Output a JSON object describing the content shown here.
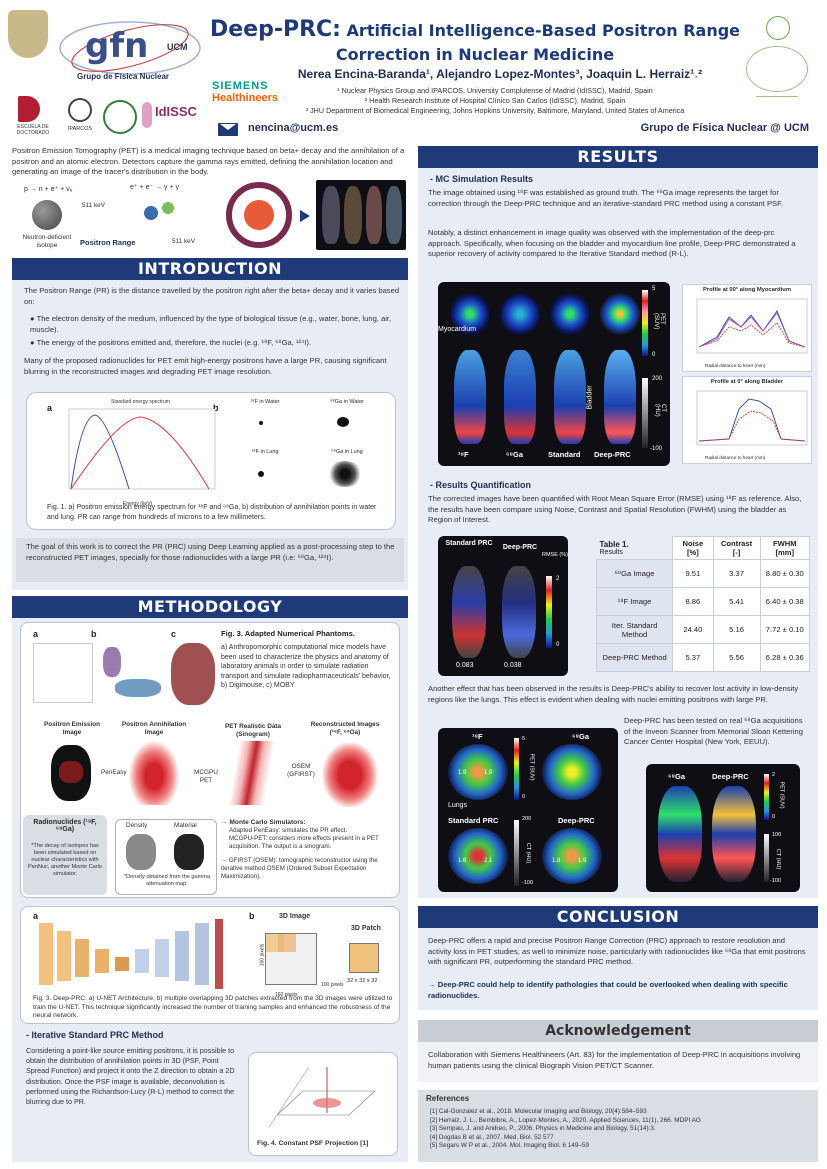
{
  "header": {
    "title_big": "Deep-PRC:",
    "title_rest": "Artificial Intelligence-Based Positron Range Correction in Nuclear Medicine",
    "authors": "Nerea Encina-Baranda¹, Alejandro Lopez-Montes³, Joaquin L. Herraiz¹˒²",
    "affil1": "¹ Nuclear Physics Group and IPARCOS, University Complutense of Madrid (IdISSC), Madrid, Spain",
    "affil2": "² Health Research Institute of Hospital Clínico San Carlos (IdISSC), Madrid, Spain",
    "affil3": "³ JHU Department of Biomedical Engineering, Johns Hopkins University, Baltimore, Maryland, United States of America",
    "email": "nencina@ucm.es",
    "group": "Grupo de Física Nuclear @ UCM",
    "logo_gfn": "gfn",
    "logo_gfn_sub": "UCM",
    "logo_gfn_caption": "Grupo de Física Nuclear",
    "logo_siemens_1": "SIEMENS",
    "logo_siemens_2": "Healthineers",
    "logo_doct": "ESCUELA DE DOCTORADO",
    "logo_iparcos": "IPARCOS",
    "logo_idissc": "IdISSC"
  },
  "intro_top": {
    "text": "Positron Emission Tomography (PET) is a medical imaging technique based on beta+ decay and the annihilation of a positron and an atomic electron. Detectors capture the gamma rays emitted, defining the annihilation location and generating an image of the tracer's distribution in the body.",
    "eq1": "p → n + e⁺ + νₑ",
    "eq2": "e⁺ + e⁻ → γ + γ",
    "kev1": "511 keV",
    "kev2": "511 keV",
    "iso": "Neutron-deficient isotope",
    "pr_label": "Positron Range"
  },
  "introduction": {
    "heading": "INTRODUCTION",
    "p1": "The Positron Range (PR) is the distance travelled by the positron right after the beta+ decay and it varies based on:",
    "b1": "The electron density of the medium, influenced by the type of biological tissue (e.g., water, bone, lung, air, muscle).",
    "b2": "The energy of the positrons emitted and, therefore, the nuclei (e.g. ¹⁸F, ⁶⁸Ga, ¹²⁴I).",
    "p2": "Many of the proposed radionuclides for PET emit high-energy positrons have a large PR, causing significant blurring in the reconstructed images and degrading PET image resolution.",
    "fig1_a": "a",
    "fig1_b": "b",
    "fig1_plot_title": "Standard energy spectrum",
    "fig1_xlabel": "Energy (keV)",
    "fig1_ylabel": "Counts (a.u.)",
    "fig1_p1": "¹⁸F in Water",
    "fig1_p2": "⁶⁸Ga in Water",
    "fig1_p3": "¹⁸F in Lung",
    "fig1_p4": "⁶⁸Ga in Lung",
    "fig1_caption": "Fig. 1. a) Positron emission energy spectrum for ¹⁸F and ⁶⁸Ga, b) distribution of annihilation points in water and lung. PR can range from hundreds of microns to a few millimeters.",
    "goal": "The goal of this work is to correct the PR (PRC) using Deep Learning applied as a post-processing step to the reconstructed PET images, specially for those radionuclides with a large PR (i.e: ⁶⁸Ga, ¹²⁴I)."
  },
  "methodology": {
    "heading": "METHODOLOGY",
    "fig3_title": "Fig. 3. Adapted Numerical Phantoms.",
    "fig3_text": "a) Anthropomorphic computational mice models have been used to characterize the physics and anatomy of laboratory animals in order to simulate radiation transport and simulate radiopharmaceuticals' behavior, b) Digimouse, c) MOBY",
    "pipe1": "Positron Emission Image",
    "pipe2": "Positron Annihilation Image",
    "pipe3": "PET Realistic Data (Sinogram)",
    "pipe4": "Reconstructed Images (¹⁸F, ⁶⁸Ga)",
    "arrow1": "PenEasy",
    "arrow2": "MCGPU PET",
    "arrow3": "OSEM (GFIRST)",
    "radionuclides": "Radionuclides (¹⁸F, ⁶⁸Ga)",
    "radio_note": "*The decay of isotopes has been simulated based on nuclear characteristics with PenNuc, another Monte Carlo simulator.",
    "density": "Density",
    "material": "Material",
    "density_note": "*Density obtained from the gamma attenuation map.",
    "mc_title": "→ Monte Carlo Simulators:",
    "mc1": "Adapted PenEasy: simulates the PR effect.",
    "mc2": "MCGPU-PET: considers more effects present in a PET acquisition. The output is a sinogram.",
    "gfirst": "→ GFIRST (OSEM): tomographic reconstructor using the iterative method OSEM (Ordered Subset Expectation Maximization).",
    "unet_a": "a",
    "unet_b": "b",
    "img3d": "3D Image",
    "patch3d": "3D Patch",
    "px160a": "160 pixels",
    "px160b": "160 pixels",
    "px100": "100 pixels",
    "patch_size": "32 x 32 x 32",
    "fig3b_caption": "Fig. 3. Deep-PRC. a) U-NET Architecture, b) multiple overlapping 3D patches extracted from the 3D images were utilized to train the U-NET. This technique significantly increased the number of training samples and enhanced the robustness of the neural network.",
    "iter_title": "- Iterative Standard PRC Method",
    "iter_text": "Considering a point-like source emitting positrons, it is possible to obtain the distribution of annihilation points in 3D (PSF, Point Spread Function) and project it onto the Z direction to obtain a 2D distribution. Once the PSF image is available, deconvolution is performed using the Richardson-Lucy (R-L) method to correct the blurring due to PR.",
    "fig4_caption": "Fig. 4. Constant PSF Projection [1]"
  },
  "results": {
    "heading": "RESULTS",
    "mc_title": "- MC Simulation Results",
    "p1": "The image obtained using ¹⁸F was established as ground truth. The ⁶⁸Ga image represents the target for correction through the Deep-PRC technique and an iterative-standard PRC method using a constant PSF.",
    "p2": "Notably, a distinct enhancement in image quality was observed with the implementation of the deep-prc approach. Specifically, when focusing on the bladder and myocardium line profile, Deep-PRC demonstrated a superior recovery of activity compared to the Iterative Standard method (R-L).",
    "img_labels": [
      "¹⁸F",
      "⁶⁸Ga",
      "Standard",
      "Deep-PRC"
    ],
    "myocardium": "Myocardium",
    "bladder": "Bladder",
    "pet_label": "PET (SUV)",
    "ct_label": "CT (HU)",
    "scale_pet_hi": "5",
    "scale_pet_lo": "0",
    "scale_ct_hi": "200",
    "scale_ct_lo": "-100",
    "prof1_title": "Profile at 00° along Myocardium",
    "prof2_title": "Profile at 0° along Bladder",
    "prof_xlabel": "Radial distance to heart (mm)",
    "prof_ylabel": "Activity (BQ)",
    "legend": [
      "¹⁸F",
      "⁶⁸Ga",
      "R-L",
      "Deep-PRC"
    ],
    "rq_title": "- Results Quantification",
    "rq_text": "The corrected images have been quantified with Root Mean Square Error (RMSE) using ¹⁸F as reference. Also, the results have been compare using Noise, Contrast and Spatial Resolution (FWHM) using the bladder as Region of Interest.",
    "rmse_std": "Standard PRC",
    "rmse_deep": "Deep-PRC",
    "rmse_label": "RMSE (%)",
    "rmse_v1": "0.083",
    "rmse_v2": "0.038",
    "rmse_hi": "2",
    "rmse_lo": "0",
    "table_title": "Table 1.",
    "table_sub": "Results",
    "table_headers": [
      "Noise [%]",
      "Contrast [-]",
      "FWHM [mm]"
    ],
    "table_rows": [
      {
        "name": "⁶⁸Ga Image",
        "noise": "9.51",
        "contrast": "3.37",
        "fwhm": "8.80 ± 0.30"
      },
      {
        "name": "¹⁸F Image",
        "noise": "8.86",
        "contrast": "5.41",
        "fwhm": "6.40 ± 0.38"
      },
      {
        "name": "Iter. Standard Method",
        "noise": "24.40",
        "contrast": "5.16",
        "fwhm": "7.72 ± 0.10"
      },
      {
        "name": "Deep-PRC Method",
        "noise": "5.37",
        "contrast": "5.56",
        "fwhm": "6.28 ± 0.36"
      }
    ],
    "lung_text": "Another effect that has been observed in the results is Deep-PRC's ability to recover lost activity in low-density regions like the lungs. This effect is evident when dealing with nuclei emitting positrons with large PR.",
    "lung_labels": [
      "¹⁸F",
      "⁶⁸Ga",
      "Standard PRC",
      "Deep-PRC"
    ],
    "lungs": "Lungs",
    "lung_vals": [
      "1.9",
      "1.9",
      "1.6",
      "2.1",
      "1.8",
      "1.9"
    ],
    "real_text": "Deep-PRC has been tested on real ⁶⁸Ga acquisitions of the Inveon Scanner from Memorial Sloan Kettering Cancer Center Hospital (New York, EEUU).",
    "real_labels": [
      "⁶⁸Ga",
      "Deep-PRC"
    ],
    "real_pet_hi": "2",
    "real_pet_lo": "0",
    "real_ct_hi": "100",
    "real_ct_lo": "-100"
  },
  "conclusion": {
    "heading": "CONCLUSION",
    "p1": "Deep-PRC offers a rapid and precise Positron Range Correction (PRC) approach to restore resolution and activity loss in PET studies, as well to minimize noise, particularly with radionuclides like ⁶⁸Ga that emit positrons with significant PR, outperforming the standard PRC method.",
    "p2": "→ Deep-PRC could help to identify pathologies that could be overlooked when dealing with specific radionuclides."
  },
  "ack": {
    "heading": "Acknowledgement",
    "text": "Collaboration with Siemens Healthineers (Art. 83) for the implementation of Deep-PRC in acquisitions involving human patients using the clinical Biograph Vision PET/CT Scanner."
  },
  "references": {
    "heading": "References",
    "items": [
      "[1] Cal-Gonzalez et al., 2018. Molecular Imaging and Biology, 20(4):584–593",
      "[2] Herraiz, J. L., Bembibre, A., Lopez-Montes, A., 2020. Applied Sciences, 11(1), 266. MDPI AG",
      "[3] Sempau, J. and Andreo, P., 2006. Physics in Medicine and Biology, 51(14):3.",
      "[4] Dogdas B et al., 2007. Med. Biol. 52 577",
      "[5] Segars W P et al., 2004. Mol. Imaging Biol. 6 149–59"
    ]
  },
  "colors": {
    "navy": "#1e3a78",
    "panel": "#e7ecf5",
    "grey": "#c9ced6"
  }
}
